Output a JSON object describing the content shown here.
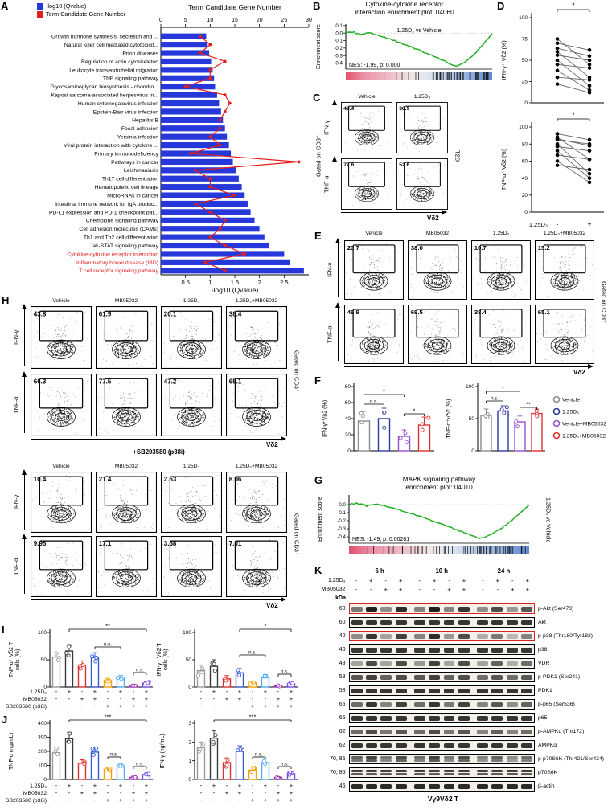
{
  "colors": {
    "bar_blue": "#2638d9",
    "line_red": "#e21f1f",
    "red_text": "#e21f1f",
    "gsea_green": "#22b022",
    "group4": [
      "#8c8c8c",
      "#2b3a9e",
      "#9b4fd1",
      "#e03131"
    ],
    "group8": [
      "#9b9b9b",
      "#3a3a3a",
      "#e03131",
      "#3457d5",
      "#f59f00",
      "#4dabf7",
      "#9c36b5",
      "#7048e8"
    ]
  },
  "panelA": {
    "label": "A",
    "legend": [
      {
        "label": "-log10 (Qvalue)",
        "color": "#2638d9"
      },
      {
        "label": "Term Candidate Gene Number",
        "color": "#e21f1f"
      }
    ],
    "chart_data": {
      "type": "bar",
      "top_axis": {
        "title": "Term Candidate Gene Number",
        "ticks": [
          0,
          5,
          10,
          15,
          20,
          25,
          30
        ],
        "max": 30
      },
      "bottom_axis": {
        "title": "-log10 (Qvalue)",
        "ticks": [
          0.5,
          1,
          1.5,
          2,
          2.5
        ],
        "max": 3
      },
      "rows": [
        {
          "name": "Growth hormone synthesis, secretion and ...",
          "q": 0.92,
          "n": 8
        },
        {
          "name": "Natural killer cell mediated cytotoxicit...",
          "q": 0.95,
          "n": 10
        },
        {
          "name": "Prion diseases",
          "q": 0.98,
          "n": 8
        },
        {
          "name": "Regulation of actin cytoskeleton",
          "q": 1.02,
          "n": 13
        },
        {
          "name": "Leukocyte transendothelial migration",
          "q": 1.05,
          "n": 10
        },
        {
          "name": "TNF signaling pathway",
          "q": 1.08,
          "n": 10
        },
        {
          "name": "Glycosaminoglycan biosynthesis - chondro...",
          "q": 1.1,
          "n": 5
        },
        {
          "name": "Kaposi sarcoma-associated herpesvirus in...",
          "q": 1.14,
          "n": 13
        },
        {
          "name": "Human cytomegalovirus infection",
          "q": 1.18,
          "n": 14
        },
        {
          "name": "Epstein-Barr virus infection",
          "q": 1.22,
          "n": 13
        },
        {
          "name": "Hepatitis B",
          "q": 1.26,
          "n": 12
        },
        {
          "name": "Focal adhesion",
          "q": 1.3,
          "n": 12
        },
        {
          "name": "Yersinia infection",
          "q": 1.34,
          "n": 10
        },
        {
          "name": "Viral protein interaction with cytokine ...",
          "q": 1.38,
          "n": 12
        },
        {
          "name": "Primary immunodeficiency",
          "q": 1.42,
          "n": 6
        },
        {
          "name": "Pathways in cancer",
          "q": 1.46,
          "n": 28
        },
        {
          "name": "Leishmaniasis",
          "q": 1.52,
          "n": 7
        },
        {
          "name": "Th17 cell differentiation",
          "q": 1.58,
          "n": 10
        },
        {
          "name": "Hematopoietic cell lineage",
          "q": 1.64,
          "n": 10
        },
        {
          "name": "MicroRNAs in cancer",
          "q": 1.7,
          "n": 15
        },
        {
          "name": "Intestinal immune network for IgA produc...",
          "q": 1.76,
          "n": 7
        },
        {
          "name": "PD-L1 expression and PD-1 checkpoint pat...",
          "q": 1.82,
          "n": 10
        },
        {
          "name": "Chemokine signaling pathway",
          "q": 1.9,
          "n": 13
        },
        {
          "name": "Cell adhesion molecules (CAMs)",
          "q": 2.0,
          "n": 12
        },
        {
          "name": "Th1 and Th2 cell differentiation",
          "q": 2.1,
          "n": 10
        },
        {
          "name": "Jak-STAT signaling pathway",
          "q": 2.2,
          "n": 13
        },
        {
          "name": "Cytokine-cytokine receptor interaction",
          "q": 2.5,
          "n": 17,
          "red": true
        },
        {
          "name": "Inflammatory bowel disease (IBD)",
          "q": 2.62,
          "n": 9,
          "red": true
        },
        {
          "name": "T cell receptor signaling pathway",
          "q": 2.9,
          "n": 13,
          "red": true
        }
      ]
    }
  },
  "panelB": {
    "label": "B",
    "title_lines": [
      "Cytokine-cytokine receptor",
      "interaction enrichment plot: 04060"
    ],
    "comparison": "1.25D₃ vs Vehicle",
    "stats": "NES: -1.99, p: 0.000",
    "ylabel": "Enrichment score",
    "yticks": [
      "0.1",
      "0.0",
      "-0.1",
      "-0.2",
      "-0.3",
      "-0.4"
    ],
    "curve": {
      "min": -0.44,
      "min_pos": 0.75,
      "seed": 5
    }
  },
  "panelC": {
    "label": "C",
    "columns": [
      "Vehicle",
      "1.25D₃"
    ],
    "rows": [
      "IFN-γ",
      "TNF-α"
    ],
    "values": [
      [
        "49.4",
        "30.9"
      ],
      [
        "77.6",
        "52.6"
      ]
    ],
    "left_label": "Gated on CD3⁺",
    "right_label": "T2D",
    "x_axis": "Vδ2"
  },
  "panelD": {
    "label": "D",
    "x_label": "1.25D₃",
    "x_ticks": [
      "-",
      "+"
    ],
    "plots": [
      {
        "ylabel": "IFN-γ⁺ Vδ2 (%)",
        "ymax": 100,
        "yticks": [
          0,
          25,
          50,
          75,
          100
        ],
        "sig": "*",
        "pairs": [
          [
            75,
            45
          ],
          [
            70,
            62
          ],
          [
            64,
            55
          ],
          [
            60,
            30
          ],
          [
            56,
            50
          ],
          [
            50,
            20
          ],
          [
            45,
            41
          ],
          [
            38,
            15
          ],
          [
            30,
            27
          ],
          [
            22,
            12
          ]
        ]
      },
      {
        "ylabel": "TNF-α⁺ Vδ2 (%)",
        "ymax": 100,
        "yticks": [
          0,
          20,
          40,
          60,
          80,
          100
        ],
        "sig": "*",
        "pairs": [
          [
            92,
            85
          ],
          [
            88,
            62
          ],
          [
            85,
            80
          ],
          [
            80,
            45
          ],
          [
            77,
            72
          ],
          [
            72,
            40
          ],
          [
            67,
            62
          ],
          [
            60,
            35
          ],
          [
            55,
            50
          ],
          [
            86,
            78
          ]
        ]
      }
    ]
  },
  "panelE": {
    "label": "E",
    "columns": [
      "Vehicle",
      "MB05032",
      "1.25D₃",
      "1.25D₃+MB05032"
    ],
    "rows": [
      "IFN-γ",
      "TNF-α"
    ],
    "values": [
      [
        "20.7",
        "38.0",
        "10.7",
        "15.2"
      ],
      [
        "46.9",
        "69.5",
        "33.4",
        "65.1"
      ]
    ],
    "right_label": "Gated on CD3⁺",
    "x_axis": "Vδ2"
  },
  "panelF": {
    "label": "F",
    "legend": [
      {
        "label": "Vehicle",
        "color": "#8c8c8c"
      },
      {
        "label": "1.25D₃",
        "color": "#2b3a9e"
      },
      {
        "label": "Vehicle+MB05032",
        "color": "#9b4fd1"
      },
      {
        "label": "1.25D₃+MB05032",
        "color": "#e03131"
      }
    ],
    "charts": [
      {
        "ylabel": "IFN-γ⁺Vδ2 (%)",
        "ymax": 80,
        "yticks": [
          0,
          20,
          40,
          60,
          80
        ],
        "values": [
          37,
          40,
          18,
          32
        ],
        "errors": [
          12,
          13,
          8,
          10
        ],
        "sig": [
          {
            "a": 0,
            "b": 1,
            "label": "n.s.",
            "y": 38
          },
          {
            "a": 0,
            "b": 2,
            "label": "*",
            "y": 26
          },
          {
            "a": 2,
            "b": 3,
            "label": "*",
            "y": 50
          }
        ]
      },
      {
        "ylabel": "TNF-α⁺Vδ2 (%)",
        "ymax": 100,
        "yticks": [
          0,
          50,
          100
        ],
        "values": [
          55,
          62,
          45,
          58
        ],
        "errors": [
          10,
          8,
          9,
          7
        ],
        "sig": [
          {
            "a": 0,
            "b": 1,
            "label": "n.s.",
            "y": 34
          },
          {
            "a": 0,
            "b": 2,
            "label": "*",
            "y": 22
          },
          {
            "a": 2,
            "b": 3,
            "label": "**",
            "y": 42
          }
        ]
      }
    ]
  },
  "panelG": {
    "label": "G",
    "title_lines": [
      "MAPK signaling pathway",
      "enrichment plot: 04010"
    ],
    "stats": "NES: -1.49, p: 0.00281",
    "side_label": "1.25D₃ vs Vehicle",
    "ylabel": "Enrichment score",
    "yticks": [
      "0.0",
      "-0.1",
      "-0.2",
      "-0.3",
      "-0.4"
    ],
    "curve": {
      "min": -0.42,
      "min_pos": 0.72,
      "seed": 9
    }
  },
  "panelH": {
    "label": "H",
    "blocks": [
      {
        "columns": [
          "Vehicle",
          "MB05032",
          "1.25D₃",
          "1.25D₃+MB05032"
        ],
        "rows": [
          "IFN-γ",
          "TNF-α"
        ],
        "values": [
          [
            "43.8",
            "61.9",
            "20.1",
            "38.4"
          ],
          [
            "66.3",
            "77.5",
            "47.2",
            "65.1"
          ]
        ],
        "right_label": "Gated on CD3⁺",
        "x_axis": "Vδ2",
        "caption": "+SB203580 (p38i)"
      },
      {
        "columns": [
          "Vehicle",
          "MB05032",
          "1.25D₃",
          "1.25D₃+MB05032"
        ],
        "rows": [
          "IFN-γ",
          "TNF-α"
        ],
        "values": [
          [
            "10.4",
            "21.4",
            "2.63",
            "8.06"
          ],
          [
            "9.95",
            "17.1",
            "3.58",
            "7.01"
          ]
        ],
        "right_label": "Gated on CD3⁺",
        "x_axis": "Vδ2"
      }
    ]
  },
  "panelI": {
    "label": "I",
    "charts": [
      {
        "ylabel": [
          "TNF-α⁺ Vδ2 T",
          "cells (%)"
        ],
        "ymax": 100,
        "yticks": [
          0,
          50,
          100
        ],
        "values": [
          55,
          66,
          40,
          54,
          12,
          16,
          3,
          7
        ],
        "errors": [
          8,
          10,
          8,
          9,
          4,
          5,
          2,
          3
        ],
        "sig": [
          {
            "a": 1,
            "b": 7,
            "label": "**",
            "y": 8
          },
          {
            "a": 3,
            "b": 5,
            "label": "n.s.",
            "y": 30
          },
          {
            "a": 6,
            "b": 7,
            "label": "n.s.",
            "y": 62
          }
        ]
      },
      {
        "ylabel": [
          "IFN-γ⁺ Vδ2 T",
          "cells (%)"
        ],
        "ymax": 100,
        "yticks": [
          0,
          50,
          100
        ],
        "values": [
          30,
          38,
          15,
          26,
          8,
          17,
          2,
          6
        ],
        "errors": [
          10,
          12,
          6,
          8,
          3,
          6,
          1,
          3
        ],
        "sig": [
          {
            "a": 3,
            "b": 7,
            "label": "*",
            "y": 8
          },
          {
            "a": 3,
            "b": 5,
            "label": "n.s.",
            "y": 40
          },
          {
            "a": 6,
            "b": 7,
            "label": "n.s.",
            "y": 64
          }
        ]
      }
    ],
    "matrix": {
      "rows": [
        "1.25D₃",
        "MB05032",
        "SB203580 (p38i)"
      ],
      "patterns": [
        [
          "-",
          "+",
          "-",
          "+",
          "-",
          "+",
          "-",
          "+"
        ],
        [
          "-",
          "-",
          "+",
          "+",
          "-",
          "-",
          "+",
          "+"
        ],
        [
          "-",
          "-",
          "-",
          "-",
          "+",
          "+",
          "+",
          "+"
        ]
      ]
    }
  },
  "panelJ": {
    "label": "J",
    "charts": [
      {
        "ylabel": "TNF-α (ng/mL)",
        "ymax": 400,
        "yticks": [
          0,
          100,
          200,
          300,
          400
        ],
        "values": [
          190,
          290,
          115,
          195,
          70,
          95,
          15,
          35
        ],
        "errors": [
          35,
          45,
          25,
          35,
          15,
          20,
          8,
          12
        ],
        "sig": [
          {
            "a": 1,
            "b": 7,
            "label": "***",
            "y": 8
          },
          {
            "a": 4,
            "b": 5,
            "label": "n.s.",
            "y": 54
          },
          {
            "a": 6,
            "b": 7,
            "label": "n.s.",
            "y": 66
          }
        ]
      },
      {
        "ylabel": "IFN-γ (ng/mL)",
        "ymax": 3,
        "yticks": [
          0,
          1,
          2,
          3
        ],
        "values": [
          1.7,
          2.2,
          0.9,
          1.5,
          0.5,
          0.9,
          0.1,
          0.3
        ],
        "errors": [
          0.3,
          0.4,
          0.25,
          0.3,
          0.15,
          0.2,
          0.05,
          0.1
        ],
        "sig": [
          {
            "a": 1,
            "b": 7,
            "label": "***",
            "y": 8
          },
          {
            "a": 4,
            "b": 5,
            "label": "n.s.",
            "y": 54
          },
          {
            "a": 6,
            "b": 7,
            "label": "n.s.",
            "y": 66
          }
        ]
      }
    ],
    "matrix": {
      "rows": [
        "1.25D₃",
        "MB05032",
        "SB203580 (p38i)"
      ],
      "patterns": [
        [
          "-",
          "+",
          "-",
          "+",
          "-",
          "+",
          "-",
          "+"
        ],
        [
          "-",
          "-",
          "+",
          "+",
          "-",
          "-",
          "+",
          "+"
        ],
        [
          "-",
          "-",
          "-",
          "-",
          "+",
          "+",
          "+",
          "+"
        ]
      ]
    }
  },
  "panelK": {
    "label": "K",
    "time_groups": [
      "6 h",
      "10 h",
      "24 h"
    ],
    "treat_rows": [
      {
        "label": "1.25D₃",
        "pattern": [
          "-",
          "+",
          "-",
          "+"
        ]
      },
      {
        "label": "MB05032",
        "pattern": [
          "-",
          "-",
          "+",
          "+"
        ]
      }
    ],
    "kda_label": "kDa",
    "blots": [
      {
        "kda": "60",
        "name": "p-Akt (Ser473)",
        "red": true,
        "bands": [
          0.55,
          0.95,
          0.45,
          0.9,
          0.5,
          0.95,
          0.5,
          0.85,
          0.45,
          0.75,
          0.4,
          0.7
        ]
      },
      {
        "kda": "60",
        "name": "Akt",
        "bands": [
          0.85,
          0.85,
          0.85,
          0.85,
          0.85,
          0.85,
          0.85,
          0.85,
          0.85,
          0.85,
          0.85,
          0.85
        ]
      },
      {
        "kda": "40",
        "name": "p-p38 (Thr180/Tyr182)",
        "red": true,
        "bands": [
          0.45,
          0.85,
          0.35,
          0.8,
          0.5,
          0.9,
          0.4,
          0.75,
          0.3,
          0.55,
          0.25,
          0.5
        ]
      },
      {
        "kda": "40",
        "name": "p38",
        "bands": [
          0.85,
          0.85,
          0.85,
          0.85,
          0.85,
          0.85,
          0.85,
          0.85,
          0.85,
          0.85,
          0.85,
          0.85
        ]
      },
      {
        "kda": "48",
        "name": "VDR",
        "bands": [
          0.35,
          0.75,
          0.35,
          0.75,
          0.4,
          0.8,
          0.35,
          0.75,
          0.35,
          0.65,
          0.3,
          0.6
        ]
      },
      {
        "kda": "58",
        "name": "p-PDK1 (Ser241)",
        "bands": [
          0.7,
          0.8,
          0.65,
          0.75,
          0.7,
          0.8,
          0.65,
          0.75,
          0.6,
          0.7,
          0.6,
          0.7
        ]
      },
      {
        "kda": "58",
        "name": "PDK1",
        "bands": [
          0.85,
          0.85,
          0.85,
          0.85,
          0.85,
          0.85,
          0.85,
          0.85,
          0.85,
          0.85,
          0.85,
          0.85
        ]
      },
      {
        "kda": "65",
        "name": "p-p65 (Ser536)",
        "bands": [
          0.6,
          0.85,
          0.5,
          0.8,
          0.6,
          0.85,
          0.55,
          0.8,
          0.5,
          0.7,
          0.45,
          0.65
        ]
      },
      {
        "kda": "65",
        "name": "p65",
        "bands": [
          0.85,
          0.85,
          0.85,
          0.85,
          0.85,
          0.85,
          0.85,
          0.85,
          0.85,
          0.85,
          0.85,
          0.85
        ]
      },
      {
        "kda": "62",
        "name": "p-AMPKα (Thr172)",
        "bands": [
          0.6,
          0.75,
          0.55,
          0.7,
          0.6,
          0.75,
          0.55,
          0.7,
          0.5,
          0.65,
          0.5,
          0.6
        ]
      },
      {
        "kda": "62",
        "name": "AMPKα",
        "bands": [
          0.85,
          0.85,
          0.85,
          0.85,
          0.85,
          0.85,
          0.85,
          0.85,
          0.85,
          0.85,
          0.85,
          0.85
        ]
      },
      {
        "kda": "70, 85",
        "name": "p-p70S6K (Thr421/Ser424)",
        "doublet": true,
        "bands": [
          0.65,
          0.8,
          0.55,
          0.75,
          0.6,
          0.8,
          0.55,
          0.75,
          0.5,
          0.65,
          0.45,
          0.6
        ]
      },
      {
        "kda": "70, 85",
        "name": "p70S6K",
        "doublet": true,
        "bands": [
          0.8,
          0.8,
          0.8,
          0.8,
          0.8,
          0.8,
          0.8,
          0.8,
          0.8,
          0.8,
          0.8,
          0.8
        ]
      },
      {
        "kda": "45",
        "name": "β-actin",
        "bands": [
          0.9,
          0.9,
          0.9,
          0.9,
          0.9,
          0.9,
          0.9,
          0.9,
          0.9,
          0.9,
          0.9,
          0.9
        ]
      }
    ],
    "bottom_label": "Vγ9Vδ2 T"
  }
}
